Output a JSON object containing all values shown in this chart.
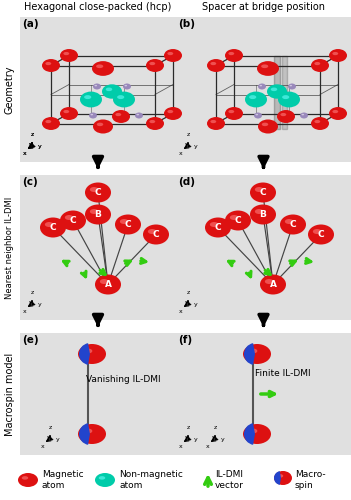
{
  "title_left": "Hexagonal close-packed (hcp)",
  "title_right": "Spacer at bridge position",
  "panel_labels": [
    "(a)",
    "(b)",
    "(c)",
    "(d)",
    "(e)",
    "(f)"
  ],
  "row_labels": [
    "Geometry",
    "Nearest neighbor IL-DMI",
    "Macrospin model"
  ],
  "text_e": "Vanishing IL-DMI",
  "text_f": "Finite IL-DMI",
  "bg_color": "#e0e0e0",
  "red_color": "#dd1111",
  "teal_color": "#00ccaa",
  "green_color": "#33cc11",
  "blue_color": "#2244cc",
  "lavender_color": "#9988bb",
  "box_color": "#333333",
  "white": "#ffffff"
}
